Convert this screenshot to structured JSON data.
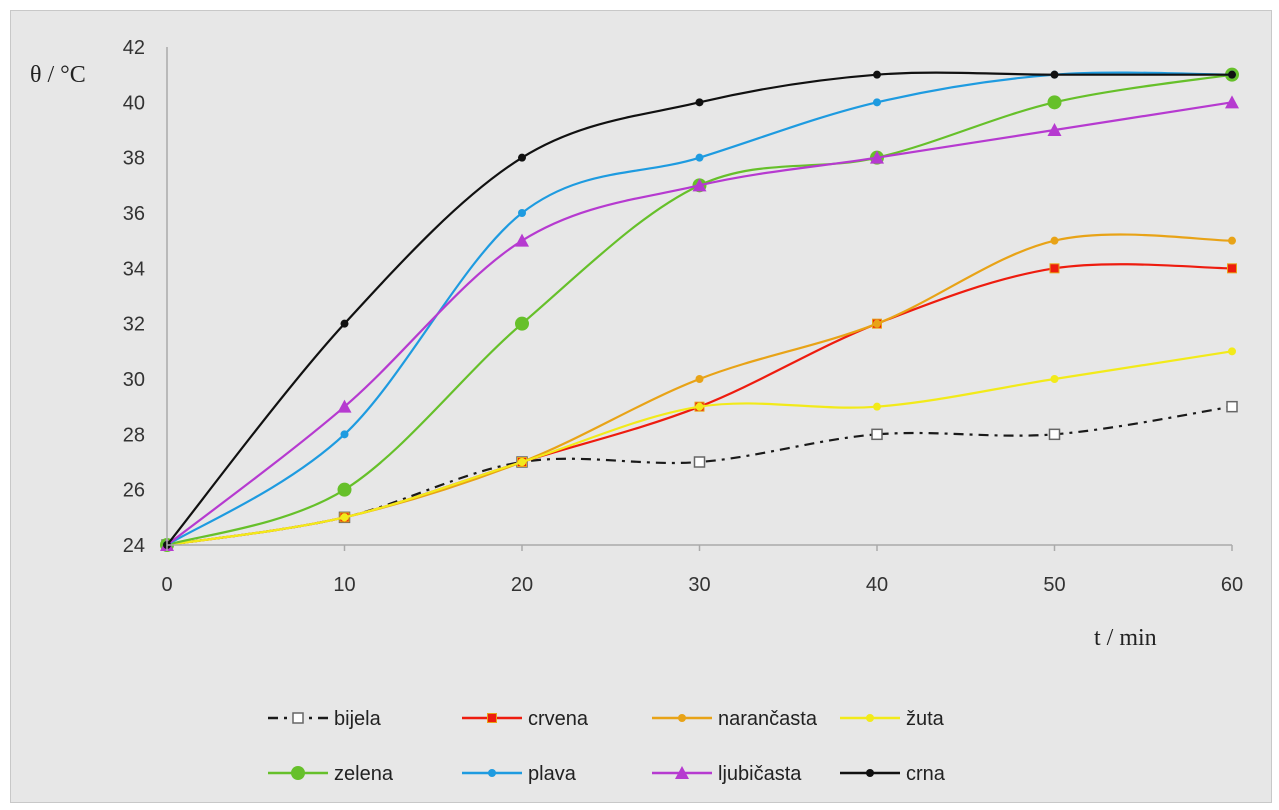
{
  "chart_data": {
    "type": "line",
    "x": [
      0,
      10,
      20,
      30,
      40,
      50,
      60
    ],
    "xlim": [
      0,
      60
    ],
    "ylim": [
      24,
      42
    ],
    "x_ticks": [
      0,
      10,
      20,
      30,
      40,
      50,
      60
    ],
    "y_ticks": [
      24,
      26,
      28,
      30,
      32,
      34,
      36,
      38,
      40,
      42
    ],
    "ylabel": "θ / °C",
    "xlabel": "t / min",
    "grid": false,
    "legend_position": "bottom",
    "series": [
      {
        "name": "bijela",
        "values": [
          24,
          25,
          27,
          27,
          28,
          28,
          29
        ],
        "color": "#1a1a1a",
        "dash": "dashdot",
        "marker": "open-square"
      },
      {
        "name": "crvena",
        "values": [
          24,
          25,
          27,
          29,
          32,
          34,
          34
        ],
        "color": "#ee1c0f",
        "dash": "solid",
        "marker": "square"
      },
      {
        "name": "narančasta",
        "values": [
          24,
          25,
          27,
          30,
          32,
          35,
          35
        ],
        "color": "#e8a317",
        "dash": "solid",
        "marker": "circle"
      },
      {
        "name": "žuta",
        "values": [
          24,
          25,
          27,
          29,
          29,
          30,
          31
        ],
        "color": "#f2ea1a",
        "dash": "solid",
        "marker": "circle"
      },
      {
        "name": "zelena",
        "values": [
          24,
          26,
          32,
          37,
          38,
          40,
          41
        ],
        "color": "#66c02a",
        "dash": "solid",
        "marker": "big-circle"
      },
      {
        "name": "plava",
        "values": [
          24,
          28,
          36,
          38,
          40,
          41,
          41
        ],
        "color": "#1e9be0",
        "dash": "solid",
        "marker": "circle"
      },
      {
        "name": "ljubičasta",
        "values": [
          24,
          29,
          35,
          37,
          38,
          39,
          40
        ],
        "color": "#b63ad0",
        "dash": "solid",
        "marker": "triangle"
      },
      {
        "name": "crna",
        "values": [
          24,
          32,
          38,
          40,
          41,
          41,
          41
        ],
        "color": "#111111",
        "dash": "solid",
        "marker": "circle"
      }
    ]
  }
}
